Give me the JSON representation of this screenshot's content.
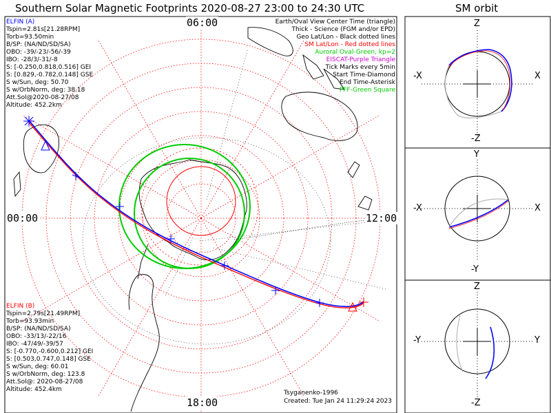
{
  "title": "Southern Solar Magnetic Footprints 2020-08-27 23:00 to 24:30 UTC",
  "orbit_title": "SM orbit",
  "clock_labels": {
    "top": "06:00",
    "left": "00:00",
    "right": "12:00",
    "bottom": "18:00"
  },
  "elfin_a": {
    "lines": [
      "ELFIN (A)",
      "Tspin=2.81s[21.28RPM]",
      "Torb=93.50min",
      "B/SP: (NA/ND/SD/SA)",
      "OBO: -39/-23/-56/-39",
      "IBO: -28/3/-31/-8",
      "S: [-0.250,0.818,0.516] GEI",
      "S: [0.829,-0.782,0.148] GSE",
      "S w/Sun, deg: 50.70",
      "S w/OrbNorm, deg: 38.18",
      "Att.Sol@2020-08-27/08",
      "Altitude: 452.2km"
    ],
    "color": "#0000ff"
  },
  "elfin_b": {
    "lines": [
      "ELFIN (B)",
      "Tspin=2.79s[21.49RPM]",
      "Torb=93.93min",
      "B/SP: (NA/ND/SD/SA)",
      "OBO: -33/13/-22/16",
      "IBO: -47/49/-39/57",
      "S: [-0.770,-0.600,0.212] GEI",
      "S: [0.503,0.747,0.148] GSE",
      "S w/Sun, deg: 60.01",
      "S w/OrbNorm, deg: 123.8",
      "Att.Sol@: 2020-08-27/08",
      "Altitude: 452.4km"
    ],
    "color": "#ff0000"
  },
  "legend": [
    {
      "text": "Earth/Oval View Center Time (triangle)",
      "color": "#000000"
    },
    {
      "text": "Thick - Science (FGM and/or EPD)",
      "color": "#000000"
    },
    {
      "text": "Geo Lat/Lon - Black dotted lines",
      "color": "#000000"
    },
    {
      "text": "SM Lat/Lon - Red dotted lines",
      "color": "#ff0000"
    },
    {
      "text": "Auroral Oval-Green, kp=2",
      "color": "#00cc00"
    },
    {
      "text": "EISCAT-Purple Triangle",
      "color": "#cc00cc"
    },
    {
      "text": "Tick Marks every 5min",
      "color": "#000000"
    },
    {
      "text": "Start Time-Diamond",
      "color": "#000000"
    },
    {
      "text": "End Time-Asterisk",
      "color": "#000000"
    },
    {
      "text": "PFF-Green Square",
      "color": "#00cc00"
    }
  ],
  "credits": {
    "model": "Tsyganenko-1996",
    "created": "Created: Tue Jan 24 11:29:24 2023"
  },
  "orbit_panels": [
    {
      "top": "Z",
      "bottom": "-Z",
      "left": "-X",
      "right": "X"
    },
    {
      "top": "Y",
      "bottom": "-Y",
      "left": "-X",
      "right": "X"
    },
    {
      "top": "Z",
      "bottom": "-Z",
      "left": "-Y",
      "right": "Y"
    }
  ],
  "colors": {
    "map_grid": "#ff0000",
    "oval": "#00cc00",
    "elfin_a": "#0000ff",
    "elfin_b": "#ff0000",
    "land": "#000000"
  }
}
